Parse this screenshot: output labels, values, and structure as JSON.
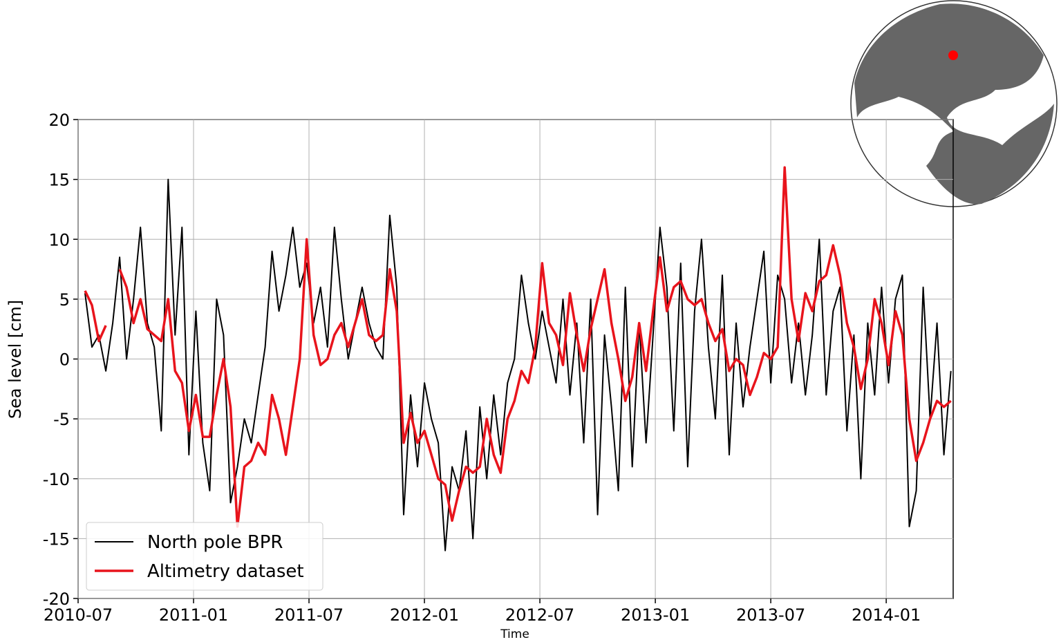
{
  "chart_data": {
    "type": "line",
    "xlabel": "Time",
    "ylabel": "Sea level [cm]",
    "xlim": [
      2010.5,
      2014.29
    ],
    "ylim": [
      -20,
      20
    ],
    "xticks": [
      {
        "value": 2010.5,
        "label": "2010-07"
      },
      {
        "value": 2011.0,
        "label": "2011-01"
      },
      {
        "value": 2011.5,
        "label": "2011-07"
      },
      {
        "value": 2012.0,
        "label": "2012-01"
      },
      {
        "value": 2012.5,
        "label": "2012-07"
      },
      {
        "value": 2013.0,
        "label": "2013-01"
      },
      {
        "value": 2013.5,
        "label": "2013-07"
      },
      {
        "value": 2014.0,
        "label": "2014-01"
      }
    ],
    "yticks": [
      -20,
      -15,
      -10,
      -5,
      0,
      5,
      10,
      15,
      20
    ],
    "grid": true,
    "legend": "lower left",
    "x": [
      2010.53,
      2010.56,
      2010.59,
      2010.62,
      2010.65,
      2010.68,
      2010.71,
      2010.74,
      2010.77,
      2010.8,
      2010.83,
      2010.86,
      2010.89,
      2010.92,
      2010.95,
      2010.98,
      2011.01,
      2011.04,
      2011.07,
      2011.1,
      2011.13,
      2011.16,
      2011.19,
      2011.22,
      2011.25,
      2011.28,
      2011.31,
      2011.34,
      2011.37,
      2011.4,
      2011.43,
      2011.46,
      2011.49,
      2011.52,
      2011.55,
      2011.58,
      2011.61,
      2011.64,
      2011.67,
      2011.7,
      2011.73,
      2011.76,
      2011.79,
      2011.82,
      2011.85,
      2011.88,
      2011.91,
      2011.94,
      2011.97,
      2012.0,
      2012.03,
      2012.06,
      2012.09,
      2012.12,
      2012.15,
      2012.18,
      2012.21,
      2012.24,
      2012.27,
      2012.3,
      2012.33,
      2012.36,
      2012.39,
      2012.42,
      2012.45,
      2012.48,
      2012.51,
      2012.54,
      2012.57,
      2012.6,
      2012.63,
      2012.66,
      2012.69,
      2012.72,
      2012.75,
      2012.78,
      2012.81,
      2012.84,
      2012.87,
      2012.9,
      2012.93,
      2012.96,
      2012.99,
      2013.02,
      2013.05,
      2013.08,
      2013.11,
      2013.14,
      2013.17,
      2013.2,
      2013.23,
      2013.26,
      2013.29,
      2013.32,
      2013.35,
      2013.38,
      2013.41,
      2013.44,
      2013.47,
      2013.5,
      2013.53,
      2013.56,
      2013.59,
      2013.62,
      2013.65,
      2013.68,
      2013.71,
      2013.74,
      2013.77,
      2013.8,
      2013.83,
      2013.86,
      2013.89,
      2013.92,
      2013.95,
      2013.98,
      2014.01,
      2014.04,
      2014.07,
      2014.1,
      2014.13,
      2014.16,
      2014.19,
      2014.22,
      2014.25,
      2014.28
    ],
    "series": [
      {
        "name": "North pole BPR",
        "color": "#000000",
        "width": 2,
        "values": [
          5.5,
          1,
          2,
          -1,
          3,
          8.5,
          0,
          5,
          11,
          3,
          1,
          -6,
          15,
          2,
          11,
          -8,
          4,
          -7,
          -11,
          5,
          2,
          -12,
          -9,
          -5,
          -7,
          -3,
          1,
          9,
          4,
          7,
          11,
          6,
          8,
          3,
          6,
          1,
          11,
          5,
          0,
          3,
          6,
          3,
          1,
          0,
          12,
          6,
          -13,
          -3,
          -9,
          -2,
          -5,
          -7,
          -16,
          -9,
          -11,
          -6,
          -15,
          -4,
          -10,
          -3,
          -8,
          -2,
          0,
          7,
          3,
          0,
          4,
          1,
          -2,
          5,
          -3,
          3,
          -7,
          5,
          -13,
          2,
          -4,
          -11,
          6,
          -9,
          3,
          -7,
          2,
          11,
          6,
          -6,
          8,
          -9,
          4,
          10,
          1,
          -5,
          7,
          -8,
          3,
          -4,
          1,
          5,
          9,
          -2,
          7,
          5,
          -2,
          3,
          -3,
          2,
          10,
          -3,
          4,
          6,
          -6,
          2,
          -10,
          3,
          -3,
          6,
          -2,
          5,
          7,
          -14,
          -11,
          6,
          -5,
          3,
          -8,
          -1
        ]
      },
      {
        "name": "Altimetry dataset",
        "color": "#e8141c",
        "width": 3.5,
        "values": [
          5.7,
          4.5,
          1.5,
          2.8,
          null,
          7.5,
          6,
          3,
          5,
          2.5,
          2,
          1.5,
          5,
          -1,
          -2,
          -6,
          -3,
          -6.5,
          -6.5,
          -3,
          0,
          -4,
          -14,
          -9,
          -8.5,
          -7,
          -8,
          -3,
          -5,
          -8,
          -4,
          0,
          10,
          2,
          -0.5,
          0,
          2,
          3,
          1,
          3,
          5,
          2,
          1.5,
          2,
          7.5,
          4,
          -7,
          -4.5,
          -7,
          -6,
          -8,
          -10,
          -10.5,
          -13.5,
          -11,
          -9,
          -9.5,
          -9,
          -5,
          -8,
          -9.5,
          -5,
          -3.5,
          -1,
          -2,
          1,
          8,
          3,
          2,
          -0.5,
          5.5,
          2,
          -1,
          2.5,
          5,
          7.5,
          3,
          0,
          -3.5,
          -1.5,
          3,
          -1,
          4,
          8.5,
          4,
          6,
          6.5,
          5,
          4.5,
          5,
          3,
          1.5,
          2.5,
          -1,
          0,
          -0.5,
          -3,
          -1.5,
          0.5,
          0,
          1,
          16,
          5,
          1.5,
          5.5,
          4,
          6.5,
          7,
          9.5,
          7,
          3,
          1,
          -2.5,
          0,
          5,
          3,
          -0.5,
          4,
          2,
          -5,
          -8.5,
          -7,
          -5,
          -3.5,
          -4,
          -3.5
        ]
      }
    ]
  }
}
